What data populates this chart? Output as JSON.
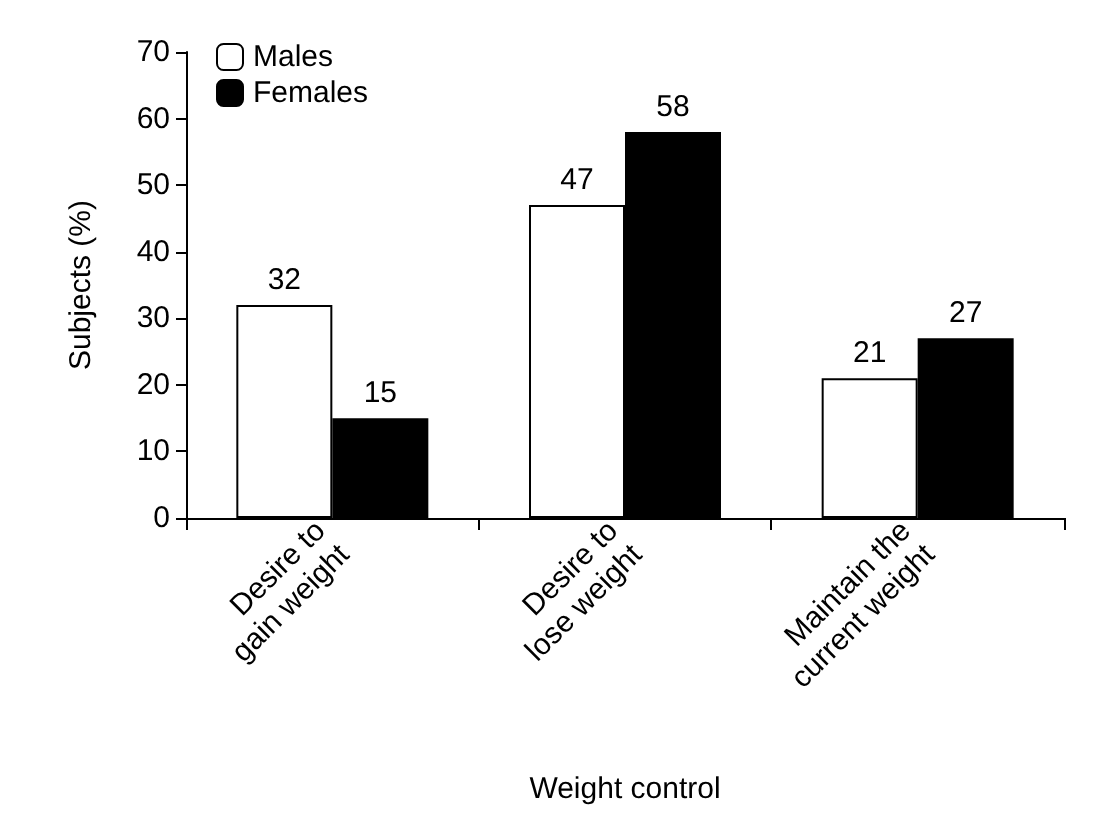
{
  "chart_data": {
    "type": "bar",
    "xlabel": "Weight control",
    "ylabel": "Subjects (%)",
    "categories": [
      "Desire to\ngain weight",
      "Desire to\nlose weight",
      "Maintain the\ncurrent weight"
    ],
    "series": [
      {
        "name": "Males",
        "color": "#ffffff",
        "values": [
          32,
          47,
          21
        ]
      },
      {
        "name": "Females",
        "color": "#000000",
        "values": [
          15,
          58,
          27
        ]
      }
    ],
    "ylim": [
      0,
      70
    ],
    "yticks": [
      0,
      10,
      20,
      30,
      40,
      50,
      60,
      70
    ],
    "grid": false,
    "legend": "top left",
    "data_labels": true
  }
}
